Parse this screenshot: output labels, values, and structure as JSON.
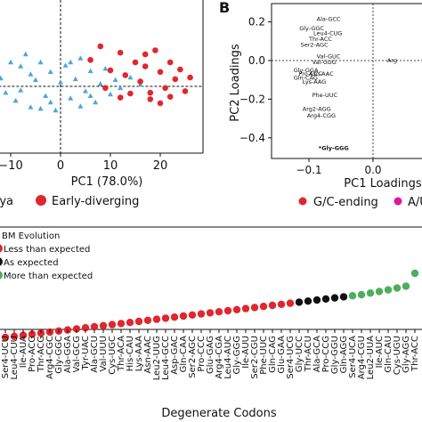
{
  "chart_data": [
    {
      "type": "scatter",
      "panel": "A",
      "xlabel": "PC1 (78.0%)",
      "xticks": [
        "−10",
        "0",
        "10",
        "20"
      ],
      "xlim": [
        -16,
        27
      ],
      "ylim": [
        -6,
        7
      ],
      "legend": [
        {
          "label": "rya",
          "color": "#4da6d8",
          "marker": "triangle"
        },
        {
          "label": "Early-diverging",
          "color": "#e0262e",
          "marker": "circle"
        }
      ],
      "series": [
        {
          "name": "rya",
          "color": "#4da6d8",
          "marker": "triangle",
          "points": [
            [
              -14,
              4.5
            ],
            [
              -12,
              1.0
            ],
            [
              -11,
              -0.8
            ],
            [
              -9,
              -1.8
            ],
            [
              -8,
              2.5
            ],
            [
              -7,
              4.0
            ],
            [
              -6,
              -2.6
            ],
            [
              -5,
              0.8
            ],
            [
              -4,
              3.0
            ],
            [
              -3,
              -1.2
            ],
            [
              -2,
              1.8
            ],
            [
              -1,
              -3.0
            ],
            [
              0,
              0.5
            ],
            [
              1,
              2.6
            ],
            [
              2,
              -1.5
            ],
            [
              3,
              0.9
            ],
            [
              4,
              3.5
            ],
            [
              5,
              -0.6
            ],
            [
              6,
              1.9
            ],
            [
              7,
              -2.0
            ],
            [
              8,
              0.3
            ],
            [
              9,
              2.2
            ],
            [
              10,
              -1.0
            ],
            [
              11,
              0.8
            ],
            [
              12,
              -0.2
            ],
            [
              14,
              1.1
            ],
            [
              16,
              0.2
            ],
            [
              -13,
              -0.2
            ],
            [
              -10,
              3.0
            ],
            [
              -6,
              1.5
            ],
            [
              -2,
              -2.0
            ],
            [
              2,
              3.0
            ],
            [
              6,
              -1.2
            ],
            [
              -8,
              -0.5
            ],
            [
              4,
              -2.5
            ],
            [
              -4,
              -2.8
            ]
          ]
        },
        {
          "name": "Early-diverging",
          "color": "#e0262e",
          "marker": "circle",
          "points": [
            [
              8,
              5.0
            ],
            [
              10,
              2.0
            ],
            [
              12,
              4.2
            ],
            [
              13,
              1.4
            ],
            [
              15,
              3.0
            ],
            [
              16,
              0.6
            ],
            [
              17,
              2.5
            ],
            [
              18,
              -0.8
            ],
            [
              19,
              4.5
            ],
            [
              20,
              1.8
            ],
            [
              21,
              -0.2
            ],
            [
              22,
              3.0
            ],
            [
              23,
              0.9
            ],
            [
              24,
              2.1
            ],
            [
              25,
              -0.6
            ],
            [
              18,
              -1.6
            ],
            [
              20,
              -2.1
            ],
            [
              14,
              -0.9
            ],
            [
              6,
              3.3
            ],
            [
              9,
              -0.2
            ],
            [
              17,
              4.0
            ],
            [
              12,
              -1.4
            ],
            [
              26,
              1.1
            ],
            [
              22,
              -1.3
            ]
          ]
        }
      ]
    },
    {
      "type": "scatter",
      "panel": "B",
      "panel_label": "B",
      "xlabel": "PC1 Loadings",
      "ylabel": "PC2 Loadings",
      "xticks": [
        "−0.1",
        "0.0"
      ],
      "yticks": [
        "0.2",
        "0.0",
        "−0.2",
        "−0.4"
      ],
      "xlim": [
        -0.145,
        0.03
      ],
      "ylim": [
        -0.54,
        0.27
      ],
      "legend": [
        {
          "label": "G/C-ending",
          "color": "#d62c2c"
        },
        {
          "label": "A/U",
          "color": "#e0169c"
        }
      ],
      "points": [
        {
          "label": "Ala-GCC",
          "x": -0.088,
          "y": 0.215
        },
        {
          "label": "Gly-GGC",
          "x": -0.115,
          "y": 0.165
        },
        {
          "label": "Leu4-CUG",
          "x": -0.093,
          "y": 0.14
        },
        {
          "label": "Thr-ACC",
          "x": -0.1,
          "y": 0.11
        },
        {
          "label": "Ser2-AGC",
          "x": -0.113,
          "y": 0.08
        },
        {
          "label": "Val-GUC",
          "x": -0.088,
          "y": 0.02
        },
        {
          "label": "Val-GUG",
          "x": -0.095,
          "y": -0.01
        },
        {
          "label": "Gly-GGA",
          "x": -0.124,
          "y": -0.05
        },
        {
          "label": "Pro-CCC",
          "x": -0.116,
          "y": -0.07
        },
        {
          "label": "Asn-AAC",
          "x": -0.1,
          "y": -0.07
        },
        {
          "label": "Gln-CAG",
          "x": -0.124,
          "y": -0.09
        },
        {
          "label": "Lys-AAG",
          "x": -0.11,
          "y": -0.11
        },
        {
          "label": "Phe-UUC",
          "x": -0.095,
          "y": -0.18
        },
        {
          "label": "Arg2-AGG",
          "x": -0.11,
          "y": -0.25
        },
        {
          "label": "Arg4-CGG",
          "x": -0.103,
          "y": -0.285
        },
        {
          "label": "*Gly-GGG",
          "x": -0.085,
          "y": -0.455
        },
        {
          "label": "Arg",
          "x": 0.022,
          "y": 0.0
        }
      ]
    },
    {
      "type": "scatter",
      "panel": "C",
      "xlabel": "Degenerate Codons",
      "legend_title": "BM Evolution",
      "legend": [
        {
          "label": "Less than expected",
          "color": "#e0262e"
        },
        {
          "label": "As expected",
          "color": "#111111"
        },
        {
          "label": "More than expected",
          "color": "#4cae5c"
        }
      ],
      "categories": [
        "Ser4-UCU",
        "Leu4-CUU",
        "Ile-AUA",
        "Pro-ACG",
        "Thr-ACG",
        "Arg4-CGC",
        "Gly-GGC",
        "Ala-GGA",
        "Val-GCG",
        "Tyr-UAC",
        "Ala-GCU",
        "Val-UUU",
        "Cys-UGC",
        "Thr-ACA",
        "His-CAU",
        "Lys-AAA",
        "Asn-AAC",
        "Leu2-UUG",
        "Leu4-GCC",
        "Asp-GAC",
        "Gln-CAA",
        "Ser2-AGC",
        "Pro-CCC",
        "Glu-GAG",
        "Arg4-CGA",
        "Leu4-AUC",
        "Gly-GGG",
        "Ile-AUU",
        "Ser2-CGU",
        "Phe-UUC",
        "Gln-CAG",
        "Glu-GAA",
        "Ser4-UCG",
        "Gly-UCC",
        "Thr-ACU",
        "Ala-GCA",
        "Pro-CCG",
        "Gly-GGU",
        "Gln-AGG",
        "Ser4-UCA",
        "Arg4-CGU",
        "Leu2-UUA",
        "Ile-AUC",
        "Gln-CAU",
        "Cys-UGU",
        "Gly-AGG",
        "Thr-ACC"
      ],
      "values": [
        0.2,
        0.24,
        0.28,
        0.32,
        0.36,
        0.4,
        0.44,
        0.48,
        0.52,
        0.56,
        0.6,
        0.64,
        0.68,
        0.72,
        0.76,
        0.8,
        0.84,
        0.88,
        0.92,
        0.96,
        1.0,
        1.04,
        1.08,
        1.12,
        1.16,
        1.2,
        1.24,
        1.28,
        1.32,
        1.36,
        1.4,
        1.44,
        1.48,
        1.52,
        1.56,
        1.6,
        1.64,
        1.68,
        1.72,
        1.76,
        1.8,
        1.86,
        1.92,
        1.98,
        2.05,
        2.12,
        2.6
      ],
      "status": [
        "less",
        "less",
        "less",
        "less",
        "less",
        "less",
        "less",
        "less",
        "less",
        "less",
        "less",
        "less",
        "less",
        "less",
        "less",
        "less",
        "less",
        "less",
        "less",
        "less",
        "less",
        "less",
        "less",
        "less",
        "less",
        "less",
        "less",
        "less",
        "less",
        "less",
        "less",
        "less",
        "less",
        "as",
        "as",
        "as",
        "as",
        "as",
        "as",
        "more",
        "more",
        "more",
        "more",
        "more",
        "more",
        "more",
        "more"
      ]
    }
  ]
}
